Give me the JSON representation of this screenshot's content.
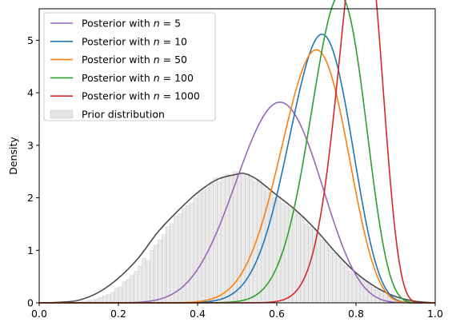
{
  "chart_data": {
    "type": "line",
    "title": "",
    "xlabel": "",
    "ylabel": "Density",
    "xlim": [
      0.0,
      1.0
    ],
    "ylim": [
      0,
      5.6
    ],
    "x_ticks": [
      0.0,
      0.2,
      0.4,
      0.6,
      0.8,
      1.0
    ],
    "x_tick_labels": [
      "0.0",
      "0.2",
      "0.4",
      "0.6",
      "0.8",
      "1.0"
    ],
    "y_ticks": [
      0,
      1,
      2,
      3,
      4,
      5
    ],
    "y_tick_labels": [
      "0",
      "1",
      "2",
      "3",
      "4",
      "5"
    ],
    "grid": false,
    "legend_position": "top-left",
    "prior": {
      "name": "Prior distribution",
      "hist_color": "#d9d9d9",
      "kde_color": "#4d4d4d",
      "kde": {
        "x": [
          0.0,
          0.05,
          0.1,
          0.15,
          0.2,
          0.25,
          0.3,
          0.35,
          0.4,
          0.45,
          0.5,
          0.52,
          0.55,
          0.6,
          0.65,
          0.7,
          0.75,
          0.8,
          0.85,
          0.9,
          0.95,
          1.0
        ],
        "y": [
          0.0,
          0.01,
          0.05,
          0.2,
          0.47,
          0.85,
          1.35,
          1.75,
          2.1,
          2.35,
          2.45,
          2.46,
          2.35,
          2.05,
          1.75,
          1.38,
          0.95,
          0.57,
          0.3,
          0.12,
          0.03,
          0.0
        ]
      },
      "bins": {
        "edges_start": 0.0,
        "bin_width": 0.01,
        "heights": [
          0,
          0,
          0,
          0,
          0,
          0,
          0,
          0,
          0.01,
          0.01,
          0.02,
          0.03,
          0.04,
          0.05,
          0.07,
          0.1,
          0.13,
          0.16,
          0.2,
          0.28,
          0.3,
          0.4,
          0.45,
          0.52,
          0.6,
          0.7,
          0.85,
          0.8,
          1.0,
          1.1,
          1.2,
          1.3,
          1.45,
          1.5,
          1.65,
          1.7,
          1.8,
          1.85,
          1.9,
          2.0,
          2.1,
          2.15,
          2.2,
          2.3,
          2.38,
          2.3,
          2.4,
          2.45,
          2.42,
          2.5,
          2.48,
          2.44,
          2.46,
          2.4,
          2.3,
          2.35,
          2.25,
          2.15,
          2.1,
          2.0,
          2.02,
          1.9,
          1.85,
          1.8,
          1.75,
          1.7,
          1.65,
          1.5,
          1.45,
          1.4,
          1.3,
          1.2,
          1.15,
          1.05,
          0.95,
          0.9,
          0.8,
          0.7,
          0.6,
          0.55,
          0.5,
          0.45,
          0.4,
          0.35,
          0.3,
          0.25,
          0.2,
          0.17,
          0.13,
          0.1,
          0.08,
          0.06,
          0.05,
          0.04,
          0.03,
          0.02,
          0.01,
          0.01,
          0,
          0
        ]
      }
    },
    "series": [
      {
        "name": "Posterior with n = 5",
        "label_prefix": "Posterior with ",
        "label_var": "n",
        "label_suffix": " = 5",
        "color": "#9467bd",
        "alpha": 13.4,
        "beta": 9.0
      },
      {
        "name": "Posterior with n = 10",
        "label_prefix": "Posterior with ",
        "label_var": "n",
        "label_suffix": " = 10",
        "color": "#1f77b4",
        "alpha": 24.0,
        "beta": 10.2
      },
      {
        "name": "Posterior with n = 50",
        "label_prefix": "Posterior with ",
        "label_var": "n",
        "label_suffix": " = 50",
        "color": "#ff7f0e",
        "alpha": 21.5,
        "beta": 9.8
      },
      {
        "name": "Posterior with n = 100",
        "label_prefix": "Posterior with ",
        "label_var": "n",
        "label_suffix": " = 100",
        "color": "#2ca02c",
        "alpha": 30.0,
        "beta": 10.2
      },
      {
        "name": "Posterior with n = 1000",
        "label_prefix": "Posterior with ",
        "label_var": "n",
        "label_suffix": " = 1000",
        "color": "#d62728",
        "alpha": 44.0,
        "beta": 10.8
      }
    ]
  }
}
